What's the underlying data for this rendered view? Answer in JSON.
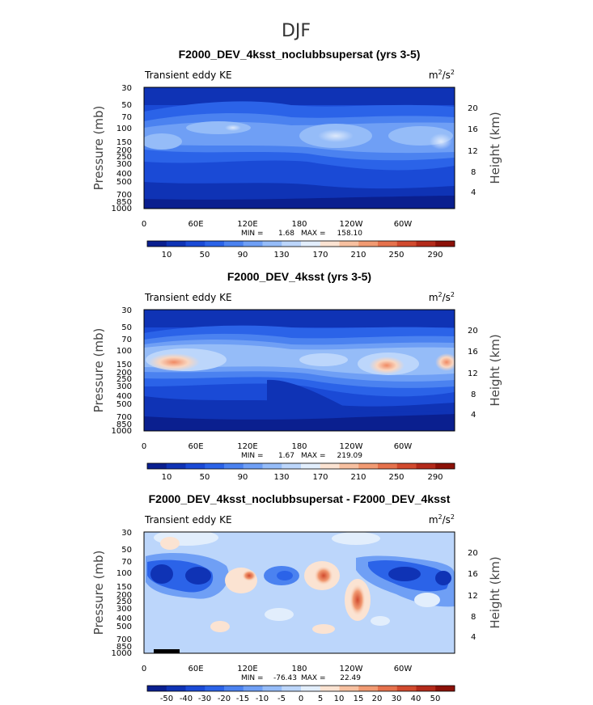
{
  "figure_title": "DJF",
  "chart_data": [
    {
      "type": "heatmap",
      "title": "F2000_DEV_4ksst_noclubbsupersat (yrs 3-5)",
      "left_label": "Transient eddy KE",
      "units": "m²/s²",
      "ylabel": "Pressure (mb)",
      "y2label": "Height (km)",
      "x_ticks": [
        "0",
        "60E",
        "120E",
        "180",
        "120W",
        "60W"
      ],
      "y_ticks": [
        "30",
        "50",
        "70",
        "100",
        "150",
        "200",
        "250",
        "300",
        "400",
        "500",
        "700",
        "850",
        "1000"
      ],
      "y2_ticks": [
        "20",
        "16",
        "12",
        "8",
        "4"
      ],
      "stats": {
        "min_label": "MIN =",
        "min": "1.68",
        "max_label": "MAX =",
        "max": "158.10"
      },
      "colorbar": {
        "ticks": [
          "10",
          "50",
          "90",
          "130",
          "170",
          "210",
          "250",
          "290"
        ],
        "colors": [
          "#0a1f8f",
          "#0f33b5",
          "#1a4ad6",
          "#2b63e8",
          "#4b82f0",
          "#6f9ff5",
          "#95bcf8",
          "#bcd6fb",
          "#e2eefc",
          "#fbe3d2",
          "#f7c0a0",
          "#f19a72",
          "#e5714c",
          "#d14a2e",
          "#b32a1a",
          "#8c1108"
        ]
      }
    },
    {
      "type": "heatmap",
      "title": "F2000_DEV_4ksst (yrs 3-5)",
      "left_label": "Transient eddy KE",
      "units": "m²/s²",
      "ylabel": "Pressure (mb)",
      "y2label": "Height (km)",
      "x_ticks": [
        "0",
        "60E",
        "120E",
        "180",
        "120W",
        "60W"
      ],
      "y_ticks": [
        "30",
        "50",
        "70",
        "100",
        "150",
        "200",
        "250",
        "300",
        "400",
        "500",
        "700",
        "850",
        "1000"
      ],
      "y2_ticks": [
        "20",
        "16",
        "12",
        "8",
        "4"
      ],
      "stats": {
        "min_label": "MIN =",
        "min": "1.67",
        "max_label": "MAX =",
        "max": "219.09"
      },
      "colorbar": {
        "ticks": [
          "10",
          "50",
          "90",
          "130",
          "170",
          "210",
          "250",
          "290"
        ],
        "colors": [
          "#0a1f8f",
          "#0f33b5",
          "#1a4ad6",
          "#2b63e8",
          "#4b82f0",
          "#6f9ff5",
          "#95bcf8",
          "#bcd6fb",
          "#e2eefc",
          "#fbe3d2",
          "#f7c0a0",
          "#f19a72",
          "#e5714c",
          "#d14a2e",
          "#b32a1a",
          "#8c1108"
        ]
      }
    },
    {
      "type": "heatmap",
      "title": "F2000_DEV_4ksst_noclubbsupersat - F2000_DEV_4ksst",
      "left_label": "Transient eddy KE",
      "units": "m²/s²",
      "ylabel": "Pressure (mb)",
      "y2label": "Height (km)",
      "x_ticks": [
        "0",
        "60E",
        "120E",
        "180",
        "120W",
        "60W"
      ],
      "y_ticks": [
        "30",
        "50",
        "70",
        "100",
        "150",
        "200",
        "250",
        "300",
        "400",
        "500",
        "700",
        "850",
        "1000"
      ],
      "y2_ticks": [
        "20",
        "16",
        "12",
        "8",
        "4"
      ],
      "stats": {
        "min_label": "MIN =",
        "min": "-76.43",
        "max_label": "MAX =",
        "max": "22.49"
      },
      "colorbar": {
        "ticks": [
          "-50",
          "-40",
          "-30",
          "-20",
          "-15",
          "-10",
          "-5",
          "0",
          "5",
          "10",
          "15",
          "20",
          "30",
          "40",
          "50"
        ],
        "colors": [
          "#0a1f8f",
          "#0f33b5",
          "#1a4ad6",
          "#2b63e8",
          "#4b82f0",
          "#6f9ff5",
          "#95bcf8",
          "#bcd6fb",
          "#e2eefc",
          "#fbe3d2",
          "#f7c0a0",
          "#f19a72",
          "#e5714c",
          "#d14a2e",
          "#b32a1a",
          "#8c1108"
        ]
      }
    }
  ]
}
